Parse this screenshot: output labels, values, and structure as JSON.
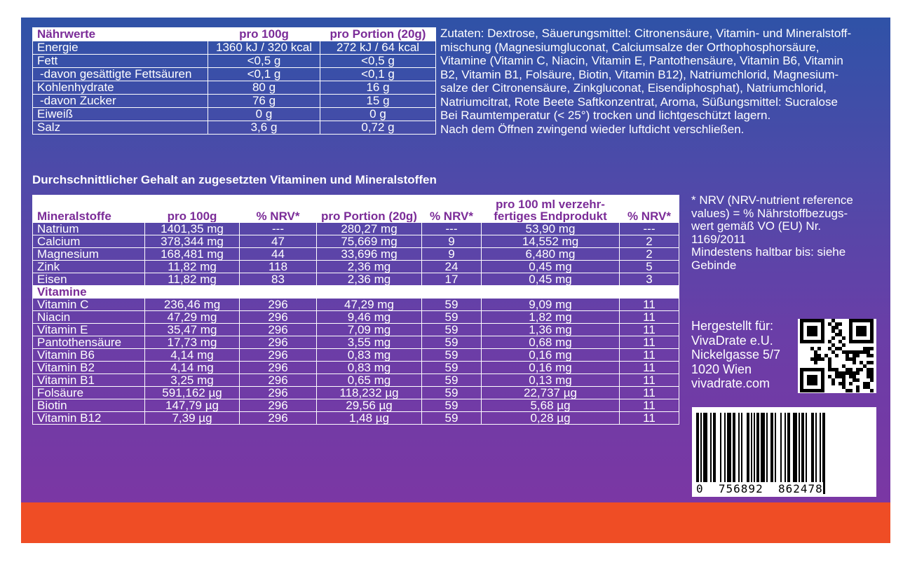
{
  "nutrition": {
    "headers": [
      "Nährwerte",
      "pro 100g",
      "pro Portion (20g)"
    ],
    "rows": [
      {
        "label": "Energie",
        "per100": "1360 kJ / 320 kcal",
        "portion": "272 kJ / 64 kcal"
      },
      {
        "label": "Fett",
        "per100": "<0,5 g",
        "portion": "<0,5 g"
      },
      {
        "label": "-davon gesättigte Fettsäuren",
        "per100": "<0,1 g",
        "portion": "<0,1 g"
      },
      {
        "label": "Kohlenhydrate",
        "per100": "80 g",
        "portion": "16 g"
      },
      {
        "label": "-davon Zucker",
        "per100": "76 g",
        "portion": "15 g"
      },
      {
        "label": "Eiweiß",
        "per100": "0 g",
        "portion": "0 g"
      },
      {
        "label": "Salz",
        "per100": "3,6 g",
        "portion": "0,72 g"
      }
    ]
  },
  "ingredients": [
    "Zutaten: Dextrose, Säuerungsmittel: Citronensäure, Vitamin- und Mineralstoff-",
    "mischung (Magnesiumgluconat, Calciumsalze der Orthophosphorsäure,",
    "Vitamine (Vitamin C, Niacin, Vitamin E, Pantothensäure, Vitamin B6, Vitamin",
    "B2, Vitamin B1, Folsäure, Biotin, Vitamin B12), Natriumchlorid, Magnesium-",
    "salze der Citronensäure, Zinkgluconat, Eisendiphosphat), Natriumchlorid,",
    "Natriumcitrat, Rote Beete Saftkonzentrat, Aroma, Süßungsmittel: Sucralose",
    "Bei Raumtemperatur (< 25°) trocken und lichtgeschützt lagern.",
    "Nach dem Öffnen zwingend wieder luftdicht verschließen."
  ],
  "vitamins_section_title": "Durchschnittlicher Gehalt an zugesetzten Vitaminen und Mineralstoffen",
  "vitamins_table": {
    "headers": [
      "Mineralstoffe",
      "pro 100g",
      "% NRV*",
      "pro Portion (20g)",
      "% NRV*",
      "pro 100 ml verzehr-",
      "fertiges Endprodukt",
      "% NRV*"
    ],
    "minerals": [
      {
        "name": "Natrium",
        "per100": "1401,35 mg",
        "nrv1": "---",
        "portion": "280,27 mg",
        "nrv2": "---",
        "ml100": "53,90 mg",
        "nrv3": "---"
      },
      {
        "name": "Calcium",
        "per100": "378,344 mg",
        "nrv1": "47",
        "portion": "75,669 mg",
        "nrv2": "9",
        "ml100": "14,552 mg",
        "nrv3": "2"
      },
      {
        "name": "Magnesium",
        "per100": "168,481 mg",
        "nrv1": "44",
        "portion": "33,696 mg",
        "nrv2": "9",
        "ml100": "6,480 mg",
        "nrv3": "2"
      },
      {
        "name": "Zink",
        "per100": "11,82 mg",
        "nrv1": "118",
        "portion": "2,36 mg",
        "nrv2": "24",
        "ml100": "0,45 mg",
        "nrv3": "5"
      },
      {
        "name": "Eisen",
        "per100": "11,82 mg",
        "nrv1": "83",
        "portion": "2,36 mg",
        "nrv2": "17",
        "ml100": "0,45 mg",
        "nrv3": "3"
      }
    ],
    "vitamins_label": "Vitamine",
    "vitamins": [
      {
        "name": "Vitamin C",
        "per100": "236,46 mg",
        "nrv1": "296",
        "portion": "47,29 mg",
        "nrv2": "59",
        "ml100": "9,09 mg",
        "nrv3": "11"
      },
      {
        "name": "Niacin",
        "per100": "47,29 mg",
        "nrv1": "296",
        "portion": "9,46 mg",
        "nrv2": "59",
        "ml100": "1,82 mg",
        "nrv3": "11"
      },
      {
        "name": "Vitamin E",
        "per100": "35,47 mg",
        "nrv1": "296",
        "portion": "7,09 mg",
        "nrv2": "59",
        "ml100": "1,36 mg",
        "nrv3": "11"
      },
      {
        "name": "Pantothensäure",
        "per100": "17,73 mg",
        "nrv1": "296",
        "portion": "3,55 mg",
        "nrv2": "59",
        "ml100": "0,68 mg",
        "nrv3": "11"
      },
      {
        "name": "Vitamin B6",
        "per100": "4,14 mg",
        "nrv1": "296",
        "portion": "0,83 mg",
        "nrv2": "59",
        "ml100": "0,16 mg",
        "nrv3": "11"
      },
      {
        "name": "Vitamin B2",
        "per100": "4,14 mg",
        "nrv1": "296",
        "portion": "0,83 mg",
        "nrv2": "59",
        "ml100": "0,16 mg",
        "nrv3": "11"
      },
      {
        "name": "Vitamin B1",
        "per100": "3,25 mg",
        "nrv1": "296",
        "portion": "0,65 mg",
        "nrv2": "59",
        "ml100": "0,13 mg",
        "nrv3": "11"
      },
      {
        "name": "Folsäure",
        "per100": "591,162 µg",
        "nrv1": "296",
        "portion": "118,232 µg",
        "nrv2": "59",
        "ml100": "22,737 µg",
        "nrv3": "11"
      },
      {
        "name": "Biotin",
        "per100": "147,79 µg",
        "nrv1": "296",
        "portion": "29,56 µg",
        "nrv2": "59",
        "ml100": "5,68 µg",
        "nrv3": "11"
      },
      {
        "name": "Vitamin B12",
        "per100": "7,39 µg",
        "nrv1": "296",
        "portion": "1,48 µg",
        "nrv2": "59",
        "ml100": "0,28 µg",
        "nrv3": "11"
      }
    ]
  },
  "nrv_note": [
    "* NRV (NRV-nutrient reference",
    "values) = % Nährstoffbezugs-",
    "wert gemäß VO (EU) Nr.",
    "1169/2011",
    "Mindestens haltbar bis: siehe",
    "Gebinde"
  ],
  "manufacturer": [
    "Hergestellt für:",
    "VivaDrate e.U.",
    "Nickelgasse 5/7",
    "1020 Wien",
    "vivadrate.com"
  ],
  "barcode_digits": "0  756892  862478",
  "colors": {
    "gradient_top": "#2f52a7",
    "gradient_bottom": "#7f35a3",
    "header_text": "#7b2c98",
    "orange_band": "#ef4d25"
  },
  "icons": [
    "qr-code-icon",
    "barcode-icon"
  ]
}
